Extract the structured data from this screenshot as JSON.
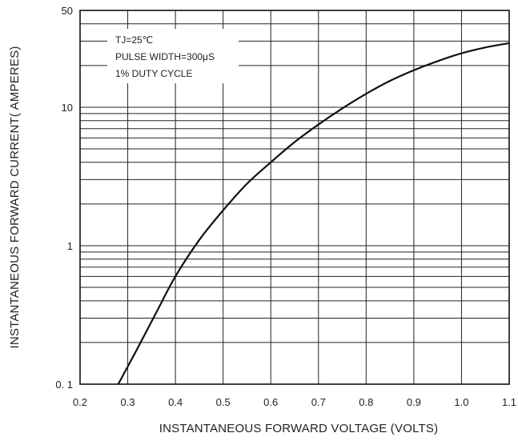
{
  "chart_data": {
    "type": "line",
    "title": "",
    "xlabel": "INSTANTANEOUS FORWARD VOLTAGE (VOLTS)",
    "ylabel": "INSTANTANEOUS FORWARD CURRENT( AMPERES)",
    "xlim": [
      0.2,
      1.1
    ],
    "ylim": [
      0.1,
      50
    ],
    "y_scale": "log",
    "grid": true,
    "x_ticks": [
      0.2,
      0.3,
      0.4,
      0.5,
      0.6,
      0.7,
      0.8,
      0.9,
      1.0,
      1.1
    ],
    "x_tick_labels": [
      "0.2",
      "0.3",
      "0.4",
      "0.5",
      "0.6",
      "0.7",
      "0.8",
      "0.9",
      "1.0",
      "1.1"
    ],
    "y_tick_values": [
      0.1,
      1,
      10,
      50
    ],
    "y_tick_labels": [
      "0. 1",
      "1",
      "10",
      "50"
    ],
    "annotations": [
      "TJ=25℃",
      "PULSE WIDTH=300μS",
      "1% DUTY CYCLE"
    ],
    "series": [
      {
        "x": [
          0.28,
          0.32,
          0.36,
          0.4,
          0.45,
          0.5,
          0.55,
          0.6,
          0.65,
          0.7,
          0.75,
          0.8,
          0.85,
          0.9,
          0.95,
          1.0,
          1.05,
          1.1
        ],
        "y": [
          0.1,
          0.18,
          0.33,
          0.6,
          1.1,
          1.8,
          2.8,
          4.0,
          5.6,
          7.5,
          9.8,
          12.5,
          15.5,
          18.5,
          21.5,
          24.5,
          27,
          29
        ]
      }
    ]
  }
}
